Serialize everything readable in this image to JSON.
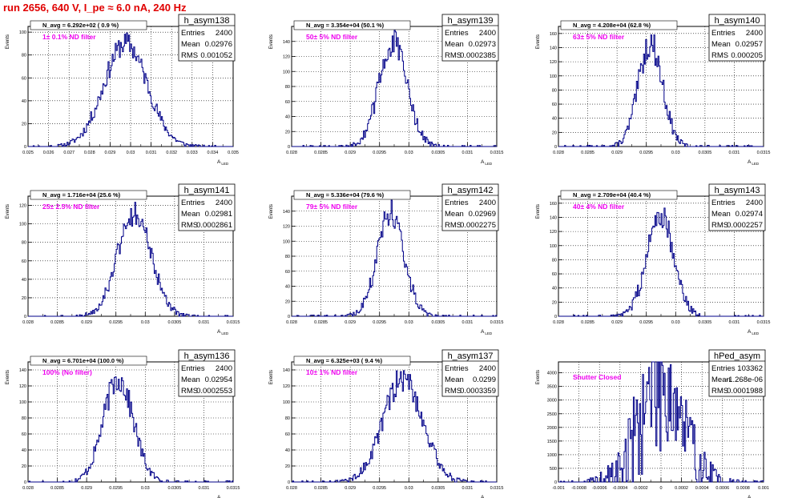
{
  "run_title": "run 2656,   640 V, I_pe ≈ 6.0 nA, 240 Hz",
  "y_axis_label": "Events",
  "x_axis_label_main": "A",
  "x_axis_label_sub": "LED",
  "stats_labels": {
    "entries": "Entries",
    "mean": "Mean",
    "rms": "RMS"
  },
  "colors": {
    "histogram": "#000088",
    "annotation": "#ee00ee",
    "title": "#e00000",
    "grid": "#000000"
  },
  "chart_data": [
    {
      "type": "histogram",
      "name": "h_asym138",
      "n_avg": "N_avg = 6.292e+02 ( 0.9 %)",
      "filter": "1± 0.1% ND filter",
      "entries": "2400",
      "mean": "0.02976",
      "rms": "0.001052",
      "mean_value": 0.02976,
      "rms_value": 0.001052,
      "xlim": [
        0.025,
        0.035
      ],
      "xticks": [
        "0.025",
        "0.026",
        "0.027",
        "0.028",
        "0.029",
        "0.03",
        "0.031",
        "0.032",
        "0.033",
        "0.034",
        "0.035"
      ],
      "ylim": [
        0,
        105
      ],
      "yticks": [
        "0",
        "20",
        "40",
        "60",
        "80",
        "100"
      ],
      "bins": 200,
      "seed": 11
    },
    {
      "type": "histogram",
      "name": "h_asym139",
      "n_avg": "N_avg = 3.354e+04 (50.1 %)",
      "filter": "50± 5% ND filter",
      "entries": "2400",
      "mean": "0.02973",
      "rms": "0.0002385",
      "mean_value": 0.02973,
      "rms_value": 0.0002385,
      "xlim": [
        0.028,
        0.0315
      ],
      "xticks": [
        "0.028",
        "0.0285",
        "0.029",
        "0.0295",
        "0.03",
        "0.0305",
        "0.031",
        "0.0315"
      ],
      "ylim": [
        0,
        160
      ],
      "yticks": [
        "0",
        "20",
        "40",
        "60",
        "80",
        "100",
        "120",
        "140"
      ],
      "bins": 200,
      "seed": 12
    },
    {
      "type": "histogram",
      "name": "h_asym140",
      "n_avg": "N_avg = 4.208e+04 (62.8 %)",
      "filter": "63± 5% ND filter",
      "entries": "2400",
      "mean": "0.02957",
      "rms": "0.000205",
      "mean_value": 0.02957,
      "rms_value": 0.000205,
      "xlim": [
        0.028,
        0.0315
      ],
      "xticks": [
        "0.028",
        "0.0285",
        "0.029",
        "0.0295",
        "0.03",
        "0.0305",
        "0.031",
        "0.0315"
      ],
      "ylim": [
        0,
        170
      ],
      "yticks": [
        "0",
        "20",
        "40",
        "60",
        "80",
        "100",
        "120",
        "140",
        "160"
      ],
      "bins": 200,
      "seed": 13
    },
    {
      "type": "histogram",
      "name": "h_asym141",
      "n_avg": "N_avg = 1.716e+04 (25.6 %)",
      "filter": "25± 2.5% ND filter",
      "entries": "2400",
      "mean": "0.02981",
      "rms": "0.0002861",
      "mean_value": 0.02981,
      "rms_value": 0.0002861,
      "xlim": [
        0.028,
        0.0315
      ],
      "xticks": [
        "0.028",
        "0.0285",
        "0.029",
        "0.0295",
        "0.03",
        "0.0305",
        "0.031",
        "0.0315"
      ],
      "ylim": [
        0,
        130
      ],
      "yticks": [
        "0",
        "20",
        "40",
        "60",
        "80",
        "100",
        "120"
      ],
      "bins": 200,
      "seed": 14
    },
    {
      "type": "histogram",
      "name": "h_asym142",
      "n_avg": "N_avg = 5.336e+04 (79.6 %)",
      "filter": "79± 5% ND filter",
      "entries": "2400",
      "mean": "0.02969",
      "rms": "0.0002275",
      "mean_value": 0.02969,
      "rms_value": 0.0002275,
      "xlim": [
        0.028,
        0.0315
      ],
      "xticks": [
        "0.028",
        "0.0285",
        "0.029",
        "0.0295",
        "0.03",
        "0.0305",
        "0.031",
        "0.0315"
      ],
      "ylim": [
        0,
        160
      ],
      "yticks": [
        "0",
        "20",
        "40",
        "60",
        "80",
        "100",
        "120",
        "140"
      ],
      "bins": 200,
      "seed": 15
    },
    {
      "type": "histogram",
      "name": "h_asym143",
      "n_avg": "N_avg = 2.709e+04 (40.4 %)",
      "filter": "40± 4% ND filter",
      "entries": "2400",
      "mean": "0.02974",
      "rms": "0.0002257",
      "mean_value": 0.02974,
      "rms_value": 0.0002257,
      "xlim": [
        0.028,
        0.0315
      ],
      "xticks": [
        "0.028",
        "0.0285",
        "0.029",
        "0.0295",
        "0.03",
        "0.0305",
        "0.031",
        "0.0315"
      ],
      "ylim": [
        0,
        170
      ],
      "yticks": [
        "0",
        "20",
        "40",
        "60",
        "80",
        "100",
        "120",
        "140",
        "160"
      ],
      "bins": 200,
      "seed": 16
    },
    {
      "type": "histogram",
      "name": "h_asym136",
      "n_avg": "N_avg = 6.701e+04 (100.0 %)",
      "filter": "100% (No filter)",
      "entries": "2400",
      "mean": "0.02954",
      "rms": "0.0002553",
      "mean_value": 0.02954,
      "rms_value": 0.0002553,
      "xlim": [
        0.028,
        0.0315
      ],
      "xticks": [
        "0.028",
        "0.0285",
        "0.029",
        "0.0295",
        "0.03",
        "0.0305",
        "0.031",
        "0.0315"
      ],
      "ylim": [
        0,
        150
      ],
      "yticks": [
        "0",
        "20",
        "40",
        "60",
        "80",
        "100",
        "120",
        "140"
      ],
      "bins": 200,
      "seed": 17
    },
    {
      "type": "histogram",
      "name": "h_asym137",
      "n_avg": "N_avg = 6.325e+03 ( 9.4 %)",
      "filter": "10± 1% ND filter",
      "entries": "2400",
      "mean": "0.0299",
      "rms": "0.0003359",
      "mean_value": 0.0299,
      "rms_value": 0.0003359,
      "xlim": [
        0.028,
        0.0315
      ],
      "xticks": [
        "0.028",
        "0.0285",
        "0.029",
        "0.0295",
        "0.03",
        "0.0305",
        "0.031",
        "0.0315"
      ],
      "ylim": [
        0,
        150
      ],
      "yticks": [
        "0",
        "20",
        "40",
        "60",
        "80",
        "100",
        "120",
        "140"
      ],
      "bins": 200,
      "seed": 18
    },
    {
      "type": "histogram",
      "name": "hPed_asym",
      "n_avg": "",
      "filter": "Shutter Closed",
      "entries": "103362",
      "mean": "-1.268e-06",
      "rms": "0.0001988",
      "mean_value": -1.268e-06,
      "rms_value": 0.0001988,
      "xlim": [
        -0.001,
        0.001
      ],
      "xticks": [
        "-0.001",
        "-0.0008",
        "-0.0006",
        "-0.0004",
        "-0.0002",
        "0",
        "0.0002",
        "0.0004",
        "0.0006",
        "0.0008",
        "0.001"
      ],
      "ylim": [
        0,
        4400
      ],
      "yticks": [
        "0",
        "500",
        "1000",
        "1500",
        "2000",
        "2500",
        "3000",
        "3500",
        "4000"
      ],
      "bins": 200,
      "seed": 19
    }
  ]
}
